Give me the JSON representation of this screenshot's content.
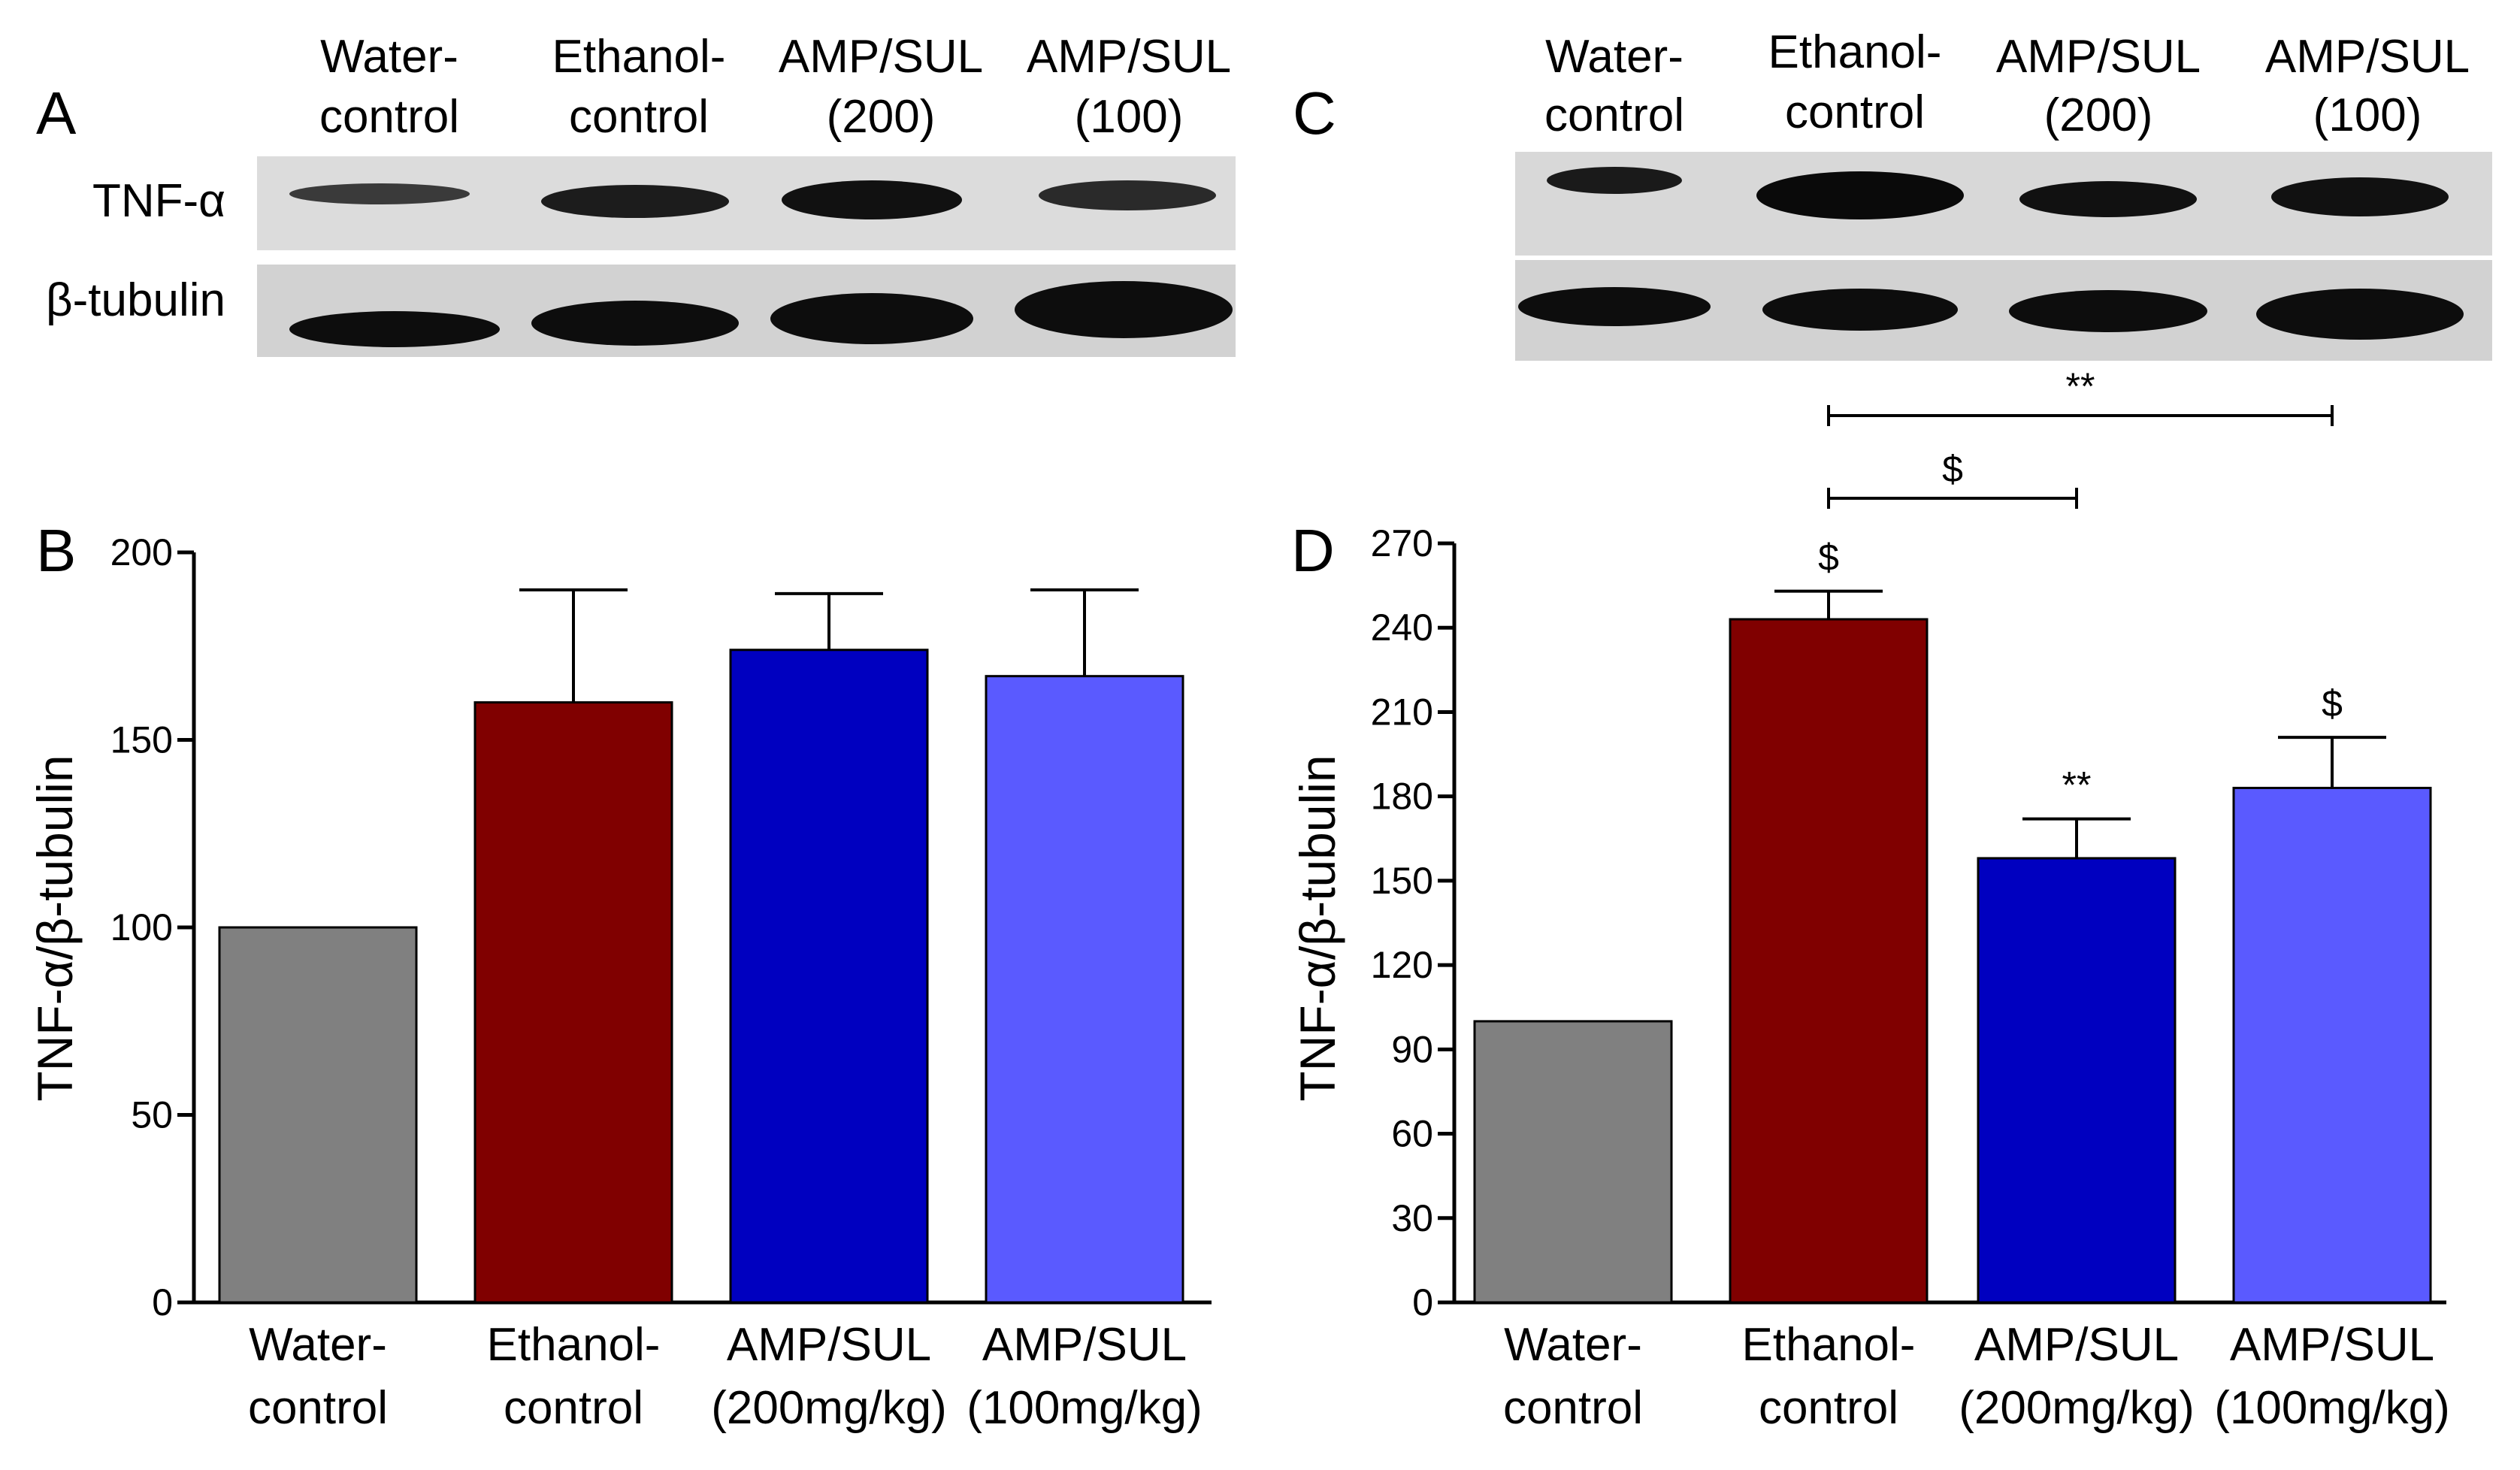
{
  "figure": {
    "panel_labels": {
      "a": "A",
      "b": "B",
      "c": "C",
      "d": "D"
    },
    "blots": [
      {
        "lane_labels": [
          [
            "Water-",
            "control"
          ],
          [
            "Ethanol-",
            "control"
          ],
          [
            "AMP/SUL",
            "(200)"
          ],
          [
            "AMP/SUL",
            "(100)"
          ]
        ],
        "row_labels": [
          "TNF-α",
          "β-tubulin"
        ]
      },
      {
        "lane_labels": [
          [
            "Water-",
            "control"
          ],
          [
            "Ethanol-",
            "control"
          ],
          [
            "AMP/SUL",
            "(200)"
          ],
          [
            "AMP/SUL",
            "(100)"
          ]
        ],
        "row_labels": []
      }
    ]
  },
  "chart_data": [
    {
      "panel": "B",
      "type": "bar",
      "ylabel": "TNF-α/β-tubulin",
      "ylim": [
        0,
        200
      ],
      "yticks": [
        0,
        50,
        100,
        150,
        200
      ],
      "categories": [
        [
          "Water-",
          "control"
        ],
        [
          "Ethanol-",
          "control"
        ],
        [
          "AMP/SUL",
          "(200mg/kg)"
        ],
        [
          "AMP/SUL",
          "(100mg/kg)"
        ]
      ],
      "values": [
        100,
        160,
        174,
        167
      ],
      "errors": [
        0,
        30,
        15,
        23
      ],
      "colors": [
        "#808080",
        "#800000",
        "#0000c0",
        "#5a5aff"
      ],
      "bar_annotations": [
        "",
        "",
        "",
        ""
      ],
      "brackets": []
    },
    {
      "panel": "D",
      "type": "bar",
      "ylabel": "TNF-α/β-tubulin",
      "ylim": [
        0,
        270
      ],
      "yticks": [
        0,
        30,
        60,
        90,
        120,
        150,
        180,
        210,
        240,
        270
      ],
      "categories": [
        [
          "Water-",
          "control"
        ],
        [
          "Ethanol-",
          "control"
        ],
        [
          "AMP/SUL",
          "(200mg/kg)"
        ],
        [
          "AMP/SUL",
          "(100mg/kg)"
        ]
      ],
      "values": [
        100,
        243,
        158,
        183
      ],
      "errors": [
        0,
        10,
        14,
        18
      ],
      "colors": [
        "#808080",
        "#800000",
        "#0000c0",
        "#5a5aff"
      ],
      "bar_annotations": [
        "",
        "$",
        "**",
        "$"
      ],
      "brackets": [
        {
          "from": 1,
          "to": 3,
          "label": "**"
        },
        {
          "from": 1,
          "to": 2,
          "label": "$"
        }
      ]
    }
  ]
}
